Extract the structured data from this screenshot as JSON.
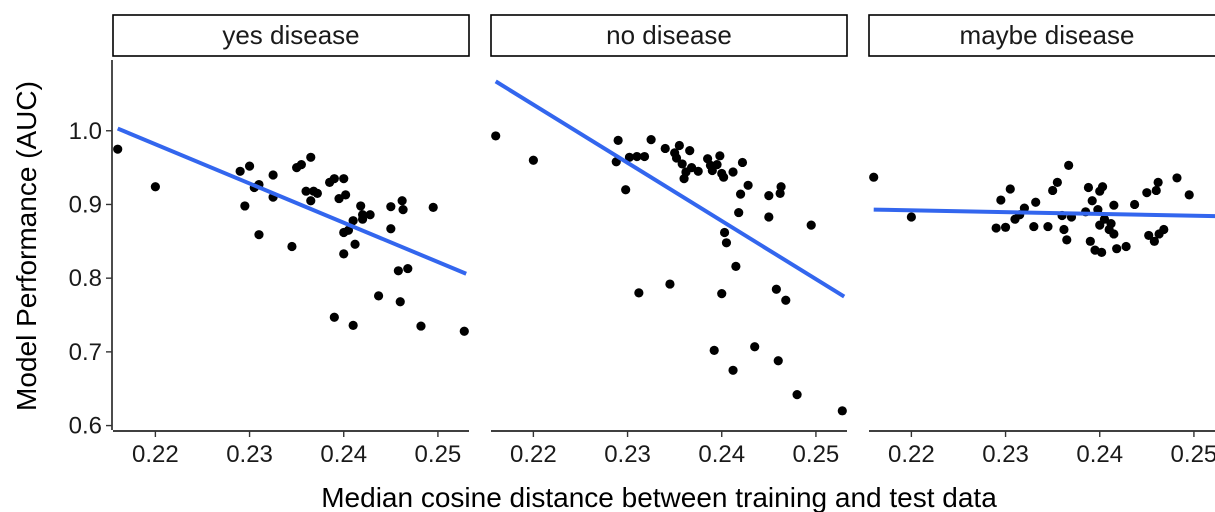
{
  "chart_data": {
    "type": "scatter",
    "facet_by": "disease status",
    "xlabel": "Median cosine distance between training and test data",
    "ylabel": "Model Performance (AUC)",
    "xlim": [
      0.2155,
      0.2533
    ],
    "ylim": [
      0.594,
      1.096
    ],
    "x_ticks": [
      "0.22",
      "0.23",
      "0.24",
      "0.25"
    ],
    "x_tick_values": [
      0.22,
      0.23,
      0.24,
      0.25
    ],
    "y_ticks": [
      "0.6",
      "0.7",
      "0.8",
      "0.9",
      "1.0"
    ],
    "y_tick_values": [
      0.6,
      0.7,
      0.8,
      0.9,
      1.0
    ],
    "point_color": "#000000",
    "trend_color": "#3366ee",
    "grid": false,
    "legend": "none",
    "panels": [
      {
        "label": "yes disease",
        "trend_line": {
          "x": [
            0.216,
            0.253
          ],
          "y": [
            1.003,
            0.806
          ]
        },
        "points": [
          {
            "x": 0.216,
            "y": 0.975
          },
          {
            "x": 0.22,
            "y": 0.924
          },
          {
            "x": 0.229,
            "y": 0.945
          },
          {
            "x": 0.23,
            "y": 0.952
          },
          {
            "x": 0.2305,
            "y": 0.923
          },
          {
            "x": 0.231,
            "y": 0.927
          },
          {
            "x": 0.2295,
            "y": 0.898
          },
          {
            "x": 0.231,
            "y": 0.859
          },
          {
            "x": 0.2325,
            "y": 0.94
          },
          {
            "x": 0.2325,
            "y": 0.91
          },
          {
            "x": 0.2345,
            "y": 0.843
          },
          {
            "x": 0.235,
            "y": 0.95
          },
          {
            "x": 0.2355,
            "y": 0.954
          },
          {
            "x": 0.236,
            "y": 0.918
          },
          {
            "x": 0.2365,
            "y": 0.964
          },
          {
            "x": 0.2365,
            "y": 0.905
          },
          {
            "x": 0.2368,
            "y": 0.918
          },
          {
            "x": 0.2372,
            "y": 0.915
          },
          {
            "x": 0.2385,
            "y": 0.93
          },
          {
            "x": 0.239,
            "y": 0.935
          },
          {
            "x": 0.2395,
            "y": 0.908
          },
          {
            "x": 0.24,
            "y": 0.935
          },
          {
            "x": 0.2402,
            "y": 0.913
          },
          {
            "x": 0.239,
            "y": 0.747
          },
          {
            "x": 0.24,
            "y": 0.862
          },
          {
            "x": 0.24,
            "y": 0.833
          },
          {
            "x": 0.2405,
            "y": 0.865
          },
          {
            "x": 0.241,
            "y": 0.878
          },
          {
            "x": 0.2412,
            "y": 0.846
          },
          {
            "x": 0.2418,
            "y": 0.898
          },
          {
            "x": 0.242,
            "y": 0.886
          },
          {
            "x": 0.242,
            "y": 0.88
          },
          {
            "x": 0.2428,
            "y": 0.886
          },
          {
            "x": 0.241,
            "y": 0.736
          },
          {
            "x": 0.2437,
            "y": 0.776
          },
          {
            "x": 0.245,
            "y": 0.897
          },
          {
            "x": 0.245,
            "y": 0.867
          },
          {
            "x": 0.2458,
            "y": 0.81
          },
          {
            "x": 0.246,
            "y": 0.768
          },
          {
            "x": 0.2462,
            "y": 0.905
          },
          {
            "x": 0.2463,
            "y": 0.893
          },
          {
            "x": 0.2468,
            "y": 0.813
          },
          {
            "x": 0.2482,
            "y": 0.735
          },
          {
            "x": 0.2495,
            "y": 0.896
          },
          {
            "x": 0.2528,
            "y": 0.728
          }
        ]
      },
      {
        "label": "no disease",
        "trend_line": {
          "x": [
            0.216,
            0.253
          ],
          "y": [
            1.067,
            0.775
          ]
        },
        "points": [
          {
            "x": 0.216,
            "y": 0.993
          },
          {
            "x": 0.22,
            "y": 0.96
          },
          {
            "x": 0.229,
            "y": 0.987
          },
          {
            "x": 0.2288,
            "y": 0.958
          },
          {
            "x": 0.2298,
            "y": 0.92
          },
          {
            "x": 0.2302,
            "y": 0.964
          },
          {
            "x": 0.231,
            "y": 0.965
          },
          {
            "x": 0.2312,
            "y": 0.78
          },
          {
            "x": 0.2318,
            "y": 0.965
          },
          {
            "x": 0.2325,
            "y": 0.988
          },
          {
            "x": 0.234,
            "y": 0.976
          },
          {
            "x": 0.2345,
            "y": 0.792
          },
          {
            "x": 0.235,
            "y": 0.97
          },
          {
            "x": 0.2352,
            "y": 0.963
          },
          {
            "x": 0.2355,
            "y": 0.98
          },
          {
            "x": 0.2358,
            "y": 0.955
          },
          {
            "x": 0.236,
            "y": 0.935
          },
          {
            "x": 0.2362,
            "y": 0.944
          },
          {
            "x": 0.2366,
            "y": 0.973
          },
          {
            "x": 0.2368,
            "y": 0.95
          },
          {
            "x": 0.2375,
            "y": 0.945
          },
          {
            "x": 0.2385,
            "y": 0.962
          },
          {
            "x": 0.2388,
            "y": 0.953
          },
          {
            "x": 0.239,
            "y": 0.946
          },
          {
            "x": 0.2392,
            "y": 0.702
          },
          {
            "x": 0.2395,
            "y": 0.954
          },
          {
            "x": 0.2398,
            "y": 0.966
          },
          {
            "x": 0.24,
            "y": 0.942
          },
          {
            "x": 0.2402,
            "y": 0.937
          },
          {
            "x": 0.2403,
            "y": 0.862
          },
          {
            "x": 0.2405,
            "y": 0.848
          },
          {
            "x": 0.24,
            "y": 0.779
          },
          {
            "x": 0.2412,
            "y": 0.944
          },
          {
            "x": 0.2412,
            "y": 0.675
          },
          {
            "x": 0.2415,
            "y": 0.816
          },
          {
            "x": 0.2418,
            "y": 0.889
          },
          {
            "x": 0.242,
            "y": 0.914
          },
          {
            "x": 0.2422,
            "y": 0.957
          },
          {
            "x": 0.2428,
            "y": 0.926
          },
          {
            "x": 0.2435,
            "y": 0.707
          },
          {
            "x": 0.245,
            "y": 0.912
          },
          {
            "x": 0.245,
            "y": 0.883
          },
          {
            "x": 0.2458,
            "y": 0.785
          },
          {
            "x": 0.246,
            "y": 0.688
          },
          {
            "x": 0.2462,
            "y": 0.915
          },
          {
            "x": 0.2463,
            "y": 0.924
          },
          {
            "x": 0.2468,
            "y": 0.77
          },
          {
            "x": 0.248,
            "y": 0.642
          },
          {
            "x": 0.2495,
            "y": 0.872
          },
          {
            "x": 0.2528,
            "y": 0.62
          }
        ]
      },
      {
        "label": "maybe disease",
        "trend_line": {
          "x": [
            0.216,
            0.253
          ],
          "y": [
            0.893,
            0.884
          ]
        },
        "points": [
          {
            "x": 0.216,
            "y": 0.937
          },
          {
            "x": 0.22,
            "y": 0.883
          },
          {
            "x": 0.229,
            "y": 0.868
          },
          {
            "x": 0.2295,
            "y": 0.906
          },
          {
            "x": 0.23,
            "y": 0.869
          },
          {
            "x": 0.2305,
            "y": 0.921
          },
          {
            "x": 0.231,
            "y": 0.88
          },
          {
            "x": 0.2315,
            "y": 0.886
          },
          {
            "x": 0.232,
            "y": 0.895
          },
          {
            "x": 0.233,
            "y": 0.87
          },
          {
            "x": 0.2332,
            "y": 0.903
          },
          {
            "x": 0.2345,
            "y": 0.87
          },
          {
            "x": 0.235,
            "y": 0.919
          },
          {
            "x": 0.2355,
            "y": 0.93
          },
          {
            "x": 0.236,
            "y": 0.885
          },
          {
            "x": 0.2362,
            "y": 0.866
          },
          {
            "x": 0.2365,
            "y": 0.852
          },
          {
            "x": 0.2367,
            "y": 0.953
          },
          {
            "x": 0.237,
            "y": 0.883
          },
          {
            "x": 0.2385,
            "y": 0.89
          },
          {
            "x": 0.2388,
            "y": 0.923
          },
          {
            "x": 0.239,
            "y": 0.85
          },
          {
            "x": 0.2392,
            "y": 0.905
          },
          {
            "x": 0.2395,
            "y": 0.838
          },
          {
            "x": 0.2398,
            "y": 0.893
          },
          {
            "x": 0.24,
            "y": 0.872
          },
          {
            "x": 0.24,
            "y": 0.918
          },
          {
            "x": 0.2402,
            "y": 0.835
          },
          {
            "x": 0.2403,
            "y": 0.924
          },
          {
            "x": 0.2405,
            "y": 0.88
          },
          {
            "x": 0.241,
            "y": 0.866
          },
          {
            "x": 0.2412,
            "y": 0.874
          },
          {
            "x": 0.2415,
            "y": 0.899
          },
          {
            "x": 0.2415,
            "y": 0.86
          },
          {
            "x": 0.2418,
            "y": 0.84
          },
          {
            "x": 0.2428,
            "y": 0.843
          },
          {
            "x": 0.2437,
            "y": 0.9
          },
          {
            "x": 0.245,
            "y": 0.916
          },
          {
            "x": 0.2452,
            "y": 0.858
          },
          {
            "x": 0.2458,
            "y": 0.85
          },
          {
            "x": 0.246,
            "y": 0.919
          },
          {
            "x": 0.2462,
            "y": 0.93
          },
          {
            "x": 0.2463,
            "y": 0.86
          },
          {
            "x": 0.2468,
            "y": 0.866
          },
          {
            "x": 0.2482,
            "y": 0.936
          },
          {
            "x": 0.2495,
            "y": 0.913
          },
          {
            "x": 0.2528,
            "y": 0.928
          }
        ]
      }
    ]
  }
}
